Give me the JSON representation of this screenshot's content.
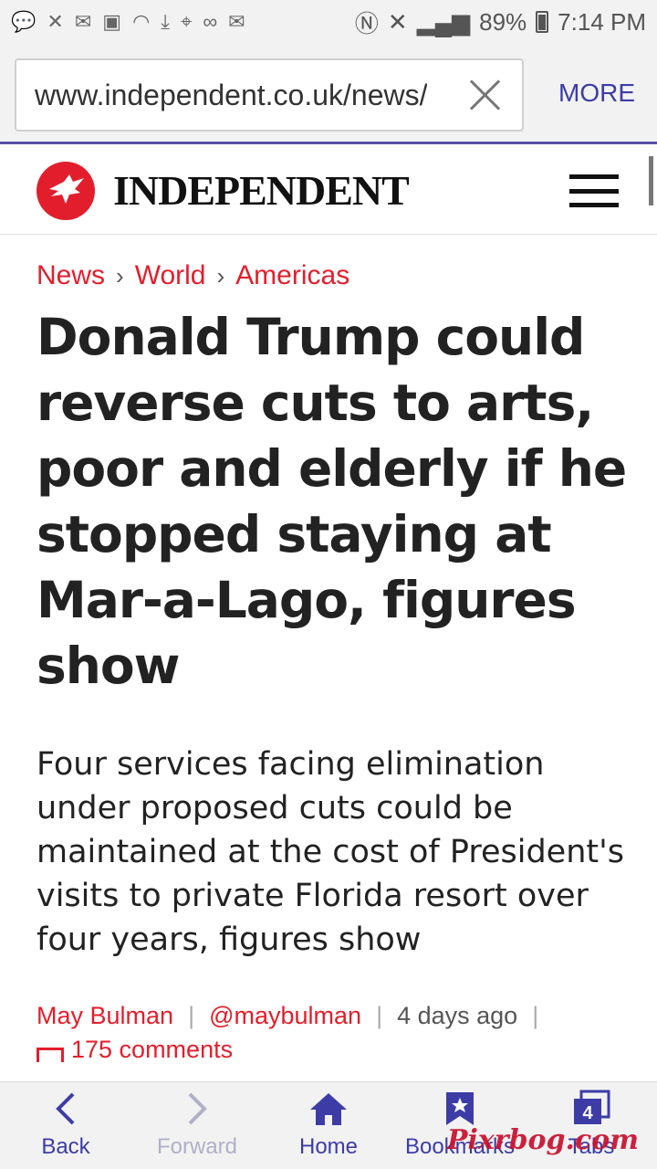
{
  "status_bar": {
    "battery": "89%",
    "time": "7:14 PM"
  },
  "browser": {
    "url": "www.independent.co.uk/news/world/americas",
    "more_label": "MORE"
  },
  "site": {
    "logo_text": "INDEPENDENT"
  },
  "article": {
    "breadcrumb": [
      "News",
      "World",
      "Americas"
    ],
    "headline": "Donald Trump could reverse cuts to arts, poor and elderly if he stopped staying at Mar-a-Lago, figures show",
    "standfirst": "Four services facing elimination under proposed cuts could be maintained at the cost of President's visits to private Florida resort over four years, figures show",
    "author": "May Bulman",
    "handle": "@maybulman",
    "published": "4 days ago",
    "comments": "175  comments"
  },
  "bottom_nav": {
    "back": "Back",
    "forward": "Forward",
    "home": "Home",
    "bookmarks": "Bookmarks",
    "tabs": "Tabs",
    "tab_count": "4"
  },
  "watermark": "Pixrbog.com",
  "colors": {
    "brand_red": "#e31e2c",
    "browser_accent": "#3d3ca7"
  }
}
